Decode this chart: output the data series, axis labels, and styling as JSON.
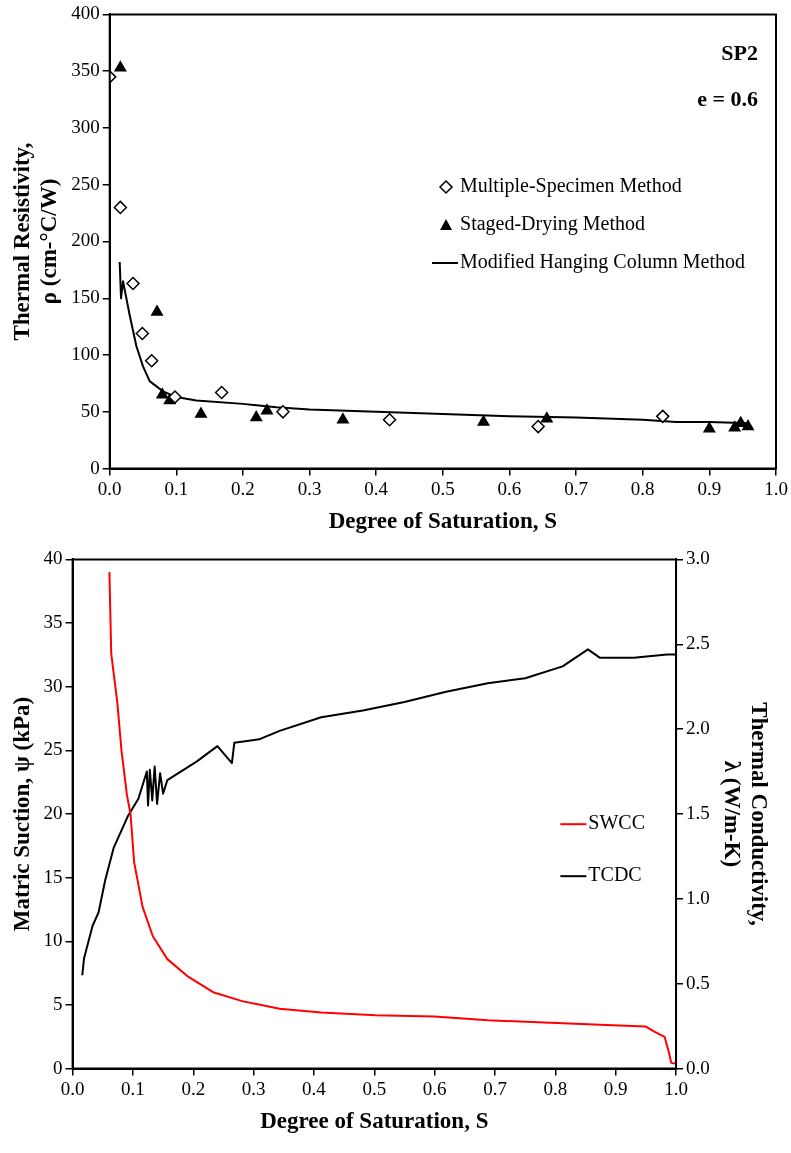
{
  "chart_data": [
    {
      "type": "scatter",
      "xlabel": "Degree of Saturation, S",
      "ylabel": "Thermal Resistivity,\nρ (cm-°C/W)",
      "annotations": [
        "SP2",
        "e = 0.6"
      ],
      "legend": "top right",
      "grid": false,
      "xlim": [
        0,
        1
      ],
      "xticks": [
        {
          "value": 0,
          "label": "0.0"
        },
        {
          "value": 0.1,
          "label": "0.1"
        },
        {
          "value": 0.2,
          "label": "0.2"
        },
        {
          "value": 0.3,
          "label": "0.3"
        },
        {
          "value": 0.4,
          "label": "0.4"
        },
        {
          "value": 0.5,
          "label": "0.5"
        },
        {
          "value": 0.6,
          "label": "0.6"
        },
        {
          "value": 0.7,
          "label": "0.7"
        },
        {
          "value": 0.8,
          "label": "0.8"
        },
        {
          "value": 0.9,
          "label": "0.9"
        },
        {
          "value": 1,
          "label": "1.0"
        }
      ],
      "ylim": [
        0,
        400
      ],
      "yticks": [
        0,
        50,
        100,
        150,
        200,
        250,
        300,
        350,
        400
      ],
      "series": [
        {
          "name": "Multiple-Specimen Method",
          "type": "scatter",
          "marker": "diamond",
          "color": "#000000",
          "x": [
            0.0,
            0.016,
            0.035,
            0.049,
            0.063,
            0.098,
            0.168,
            0.26,
            0.42,
            0.643,
            0.83
          ],
          "values": [
            345,
            230,
            163,
            119,
            95,
            63,
            67,
            50,
            43,
            37,
            46
          ]
        },
        {
          "name": "Staged-Drying Method",
          "type": "scatter",
          "marker": "triangle",
          "color": "#000000",
          "x": [
            0.016,
            0.071,
            0.079,
            0.09,
            0.137,
            0.22,
            0.236,
            0.35,
            0.561,
            0.656,
            0.9,
            0.938,
            0.947,
            0.953,
            0.958
          ],
          "values": [
            353,
            138,
            65,
            60,
            48,
            45,
            51,
            43,
            41,
            44,
            35,
            36,
            40,
            null,
            37
          ]
        },
        {
          "name": "Modified Hanging Column Method",
          "type": "line",
          "marker": "none",
          "color": "#000000",
          "x": [
            0.015,
            0.017,
            0.02,
            0.03,
            0.04,
            0.05,
            0.06,
            0.08,
            0.1,
            0.13,
            0.2,
            0.25,
            0.3,
            0.4,
            0.5,
            0.6,
            0.7,
            0.8,
            0.85,
            0.9,
            0.96
          ],
          "values": [
            182,
            150,
            165,
            135,
            108,
            90,
            77,
            68,
            63,
            60,
            57,
            54,
            52,
            50,
            48,
            46,
            45,
            43,
            41,
            41,
            40
          ]
        }
      ]
    },
    {
      "type": "line",
      "xlabel": "Degree of Saturation, S",
      "ylabel": "Matric Suction, ψ (kPa)",
      "y2label": "Thermal Conductivity,\nλ (W/m-K)",
      "legend": "right",
      "grid": false,
      "marker": "none",
      "xlim": [
        0,
        1
      ],
      "xticks": [
        {
          "value": 0,
          "label": "0.0"
        },
        {
          "value": 0.1,
          "label": "0.1"
        },
        {
          "value": 0.2,
          "label": "0.2"
        },
        {
          "value": 0.3,
          "label": "0.3"
        },
        {
          "value": 0.4,
          "label": "0.4"
        },
        {
          "value": 0.5,
          "label": "0.5"
        },
        {
          "value": 0.6,
          "label": "0.6"
        },
        {
          "value": 0.7,
          "label": "0.7"
        },
        {
          "value": 0.8,
          "label": "0.8"
        },
        {
          "value": 0.9,
          "label": "0.9"
        },
        {
          "value": 1,
          "label": "1.0"
        }
      ],
      "ylim": [
        0,
        40
      ],
      "yticks": [
        0,
        5,
        10,
        15,
        20,
        25,
        30,
        35,
        40
      ],
      "y2lim": [
        0,
        3
      ],
      "y2ticks": [
        {
          "value": 0,
          "label": "0.0"
        },
        {
          "value": 0.5,
          "label": "0.5"
        },
        {
          "value": 1,
          "label": "1.0"
        },
        {
          "value": 1.5,
          "label": "1.5"
        },
        {
          "value": 2,
          "label": "2.0"
        },
        {
          "value": 2.5,
          "label": "2.5"
        },
        {
          "value": 3,
          "label": "3.0"
        }
      ],
      "series": [
        {
          "name": "SWCC",
          "color": "#ff0000",
          "x": [
            0.061,
            0.064,
            0.074,
            0.081,
            0.09,
            0.096,
            0.102,
            0.116,
            0.133,
            0.157,
            0.192,
            0.233,
            0.281,
            0.343,
            0.412,
            0.502,
            0.599,
            0.688,
            0.792,
            0.895,
            0.95,
            0.964,
            0.981,
            0.988,
            0.992,
            0.999
          ],
          "values": [
            39.0,
            32.6,
            28.8,
            25,
            21.5,
            20,
            16.2,
            12.7,
            10.4,
            8.6,
            7.2,
            6.0,
            5.3,
            4.7,
            4.4,
            4.2,
            4.1,
            3.8,
            3.6,
            3.4,
            3.3,
            2.9,
            2.5,
            1.3,
            0.45,
            0.4
          ]
        },
        {
          "name": "TCDC",
          "color": "#000000",
          "axis": "y2",
          "x": [
            0.016,
            0.019,
            0.033,
            0.043,
            0.054,
            0.068,
            0.092,
            0.109,
            0.123,
            0.125,
            0.128,
            0.132,
            0.136,
            0.14,
            0.145,
            0.15,
            0.157,
            0.206,
            0.24,
            0.264,
            0.268,
            0.309,
            0.343,
            0.412,
            0.481,
            0.55,
            0.619,
            0.688,
            0.75,
            0.812,
            0.854,
            0.874,
            0.93,
            0.985,
            1.0
          ],
          "values": [
            0.55,
            0.65,
            0.84,
            0.92,
            1.11,
            1.3,
            1.49,
            1.59,
            1.75,
            1.55,
            1.76,
            1.58,
            1.78,
            1.56,
            1.74,
            1.62,
            1.7,
            1.81,
            1.9,
            1.8,
            1.92,
            1.94,
            1.99,
            2.07,
            2.11,
            2.16,
            2.22,
            2.27,
            2.3,
            2.37,
            2.47,
            2.42,
            2.42,
            2.44,
            2.44
          ]
        }
      ]
    }
  ]
}
